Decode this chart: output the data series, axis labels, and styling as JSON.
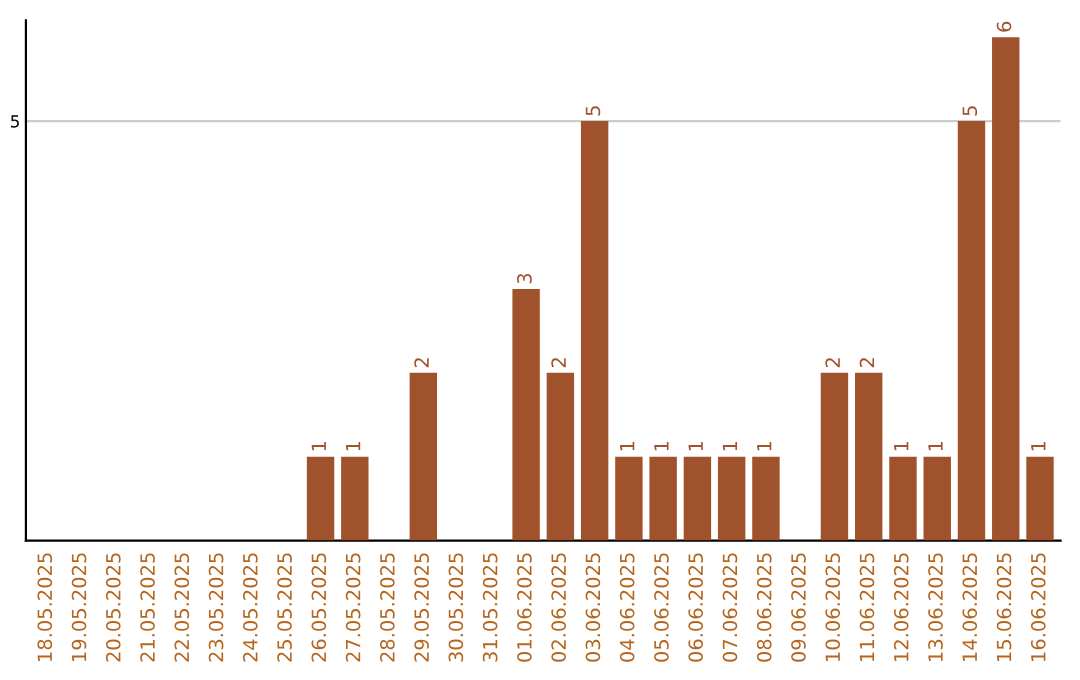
{
  "chart_data": {
    "type": "bar",
    "categories": [
      "18.05.2025",
      "19.05.2025",
      "20.05.2025",
      "21.05.2025",
      "22.05.2025",
      "23.05.2025",
      "24.05.2025",
      "25.05.2025",
      "26.05.2025",
      "27.05.2025",
      "28.05.2025",
      "29.05.2025",
      "30.05.2025",
      "31.05.2025",
      "01.06.2025",
      "02.06.2025",
      "03.06.2025",
      "04.06.2025",
      "05.06.2025",
      "06.06.2025",
      "07.06.2025",
      "08.06.2025",
      "09.06.2025",
      "10.06.2025",
      "11.06.2025",
      "12.06.2025",
      "13.06.2025",
      "14.06.2025",
      "15.06.2025",
      "16.06.2025"
    ],
    "values": [
      0,
      0,
      0,
      0,
      0,
      0,
      0,
      0,
      1,
      1,
      0,
      2,
      0,
      0,
      3,
      2,
      5,
      1,
      1,
      1,
      1,
      1,
      0,
      2,
      2,
      1,
      1,
      5,
      6,
      1
    ],
    "value_labels": [
      null,
      null,
      null,
      null,
      null,
      null,
      null,
      null,
      "1",
      "1",
      null,
      "2",
      null,
      null,
      "3",
      "2",
      "5",
      "1",
      "1",
      "1",
      "1",
      "1",
      null,
      "2",
      "2",
      "1",
      "1",
      "5",
      "6",
      "1"
    ],
    "color": "#a0522d",
    "ylim": [
      0,
      6.2
    ],
    "yticks": [
      5
    ],
    "grid": "y",
    "legend": false
  }
}
